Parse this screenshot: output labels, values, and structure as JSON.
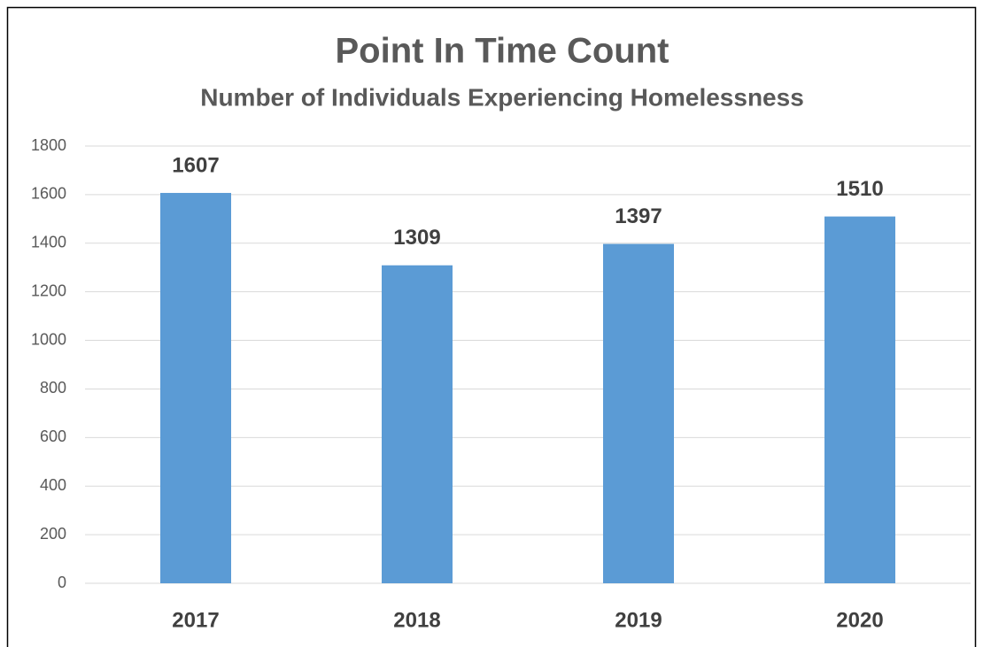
{
  "chart_data": {
    "type": "bar",
    "title": "Point In Time Count",
    "subtitle": "Number of Individuals Experiencing Homelessness",
    "categories": [
      "2017",
      "2018",
      "2019",
      "2020"
    ],
    "values": [
      1607,
      1309,
      1397,
      1510
    ],
    "color": "#5b9bd5",
    "ylim": [
      0,
      1800
    ],
    "yticks": [
      0,
      200,
      400,
      600,
      800,
      1000,
      1200,
      1400,
      1600,
      1800
    ],
    "grid": true
  }
}
